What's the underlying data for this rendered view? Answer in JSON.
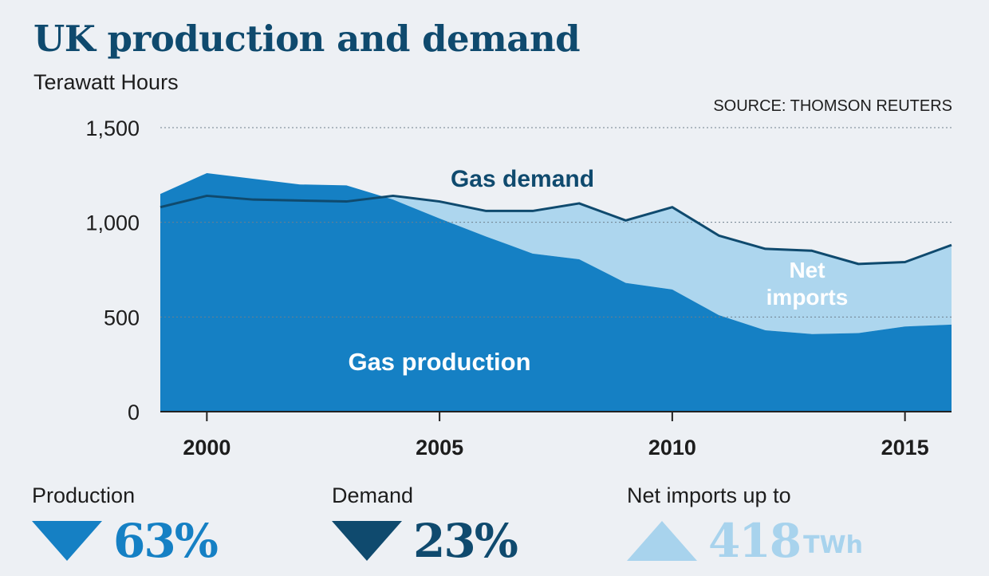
{
  "chart_data": {
    "type": "area",
    "title": "UK production and demand",
    "subtitle": "Terawatt Hours",
    "source": "SOURCE: THOMSON REUTERS",
    "x": [
      1999,
      2000,
      2001,
      2002,
      2003,
      2004,
      2005,
      2006,
      2007,
      2008,
      2009,
      2010,
      2011,
      2012,
      2013,
      2014,
      2015,
      2016
    ],
    "xlim": [
      1999,
      2016
    ],
    "ylim": [
      0,
      1500
    ],
    "y_ticks": [
      0,
      500,
      1000,
      1500
    ],
    "y_tick_labels": [
      "0",
      "500",
      "1,000",
      "1,500"
    ],
    "x_ticks": [
      2000,
      2005,
      2010,
      2015
    ],
    "x_tick_labels": [
      "2000",
      "2005",
      "2010",
      "2015"
    ],
    "grid": true,
    "series": [
      {
        "name": "Gas production",
        "style": "area",
        "color": "#1580c4",
        "values": [
          1150,
          1260,
          1230,
          1200,
          1195,
          1120,
          1020,
          925,
          835,
          805,
          680,
          645,
          510,
          430,
          410,
          415,
          450,
          460
        ]
      },
      {
        "name": "Gas demand",
        "style": "line",
        "color": "#0f4a6e",
        "values": [
          1080,
          1140,
          1120,
          1115,
          1110,
          1140,
          1110,
          1060,
          1060,
          1100,
          1010,
          1080,
          930,
          860,
          850,
          780,
          790,
          880
        ]
      },
      {
        "name": "Net imports",
        "style": "fill-between",
        "color": "#add6ee"
      }
    ]
  },
  "stats": [
    {
      "label": "Production",
      "value": "63%",
      "unit": "",
      "arrow": "down",
      "color": "#1580c4"
    },
    {
      "label": "Demand",
      "value": "23%",
      "unit": "",
      "arrow": "down",
      "color": "#0f4a6e"
    },
    {
      "label": "Net imports up to",
      "value": "418",
      "unit": "TWh",
      "arrow": "up",
      "color": "#a8d3ed"
    }
  ]
}
